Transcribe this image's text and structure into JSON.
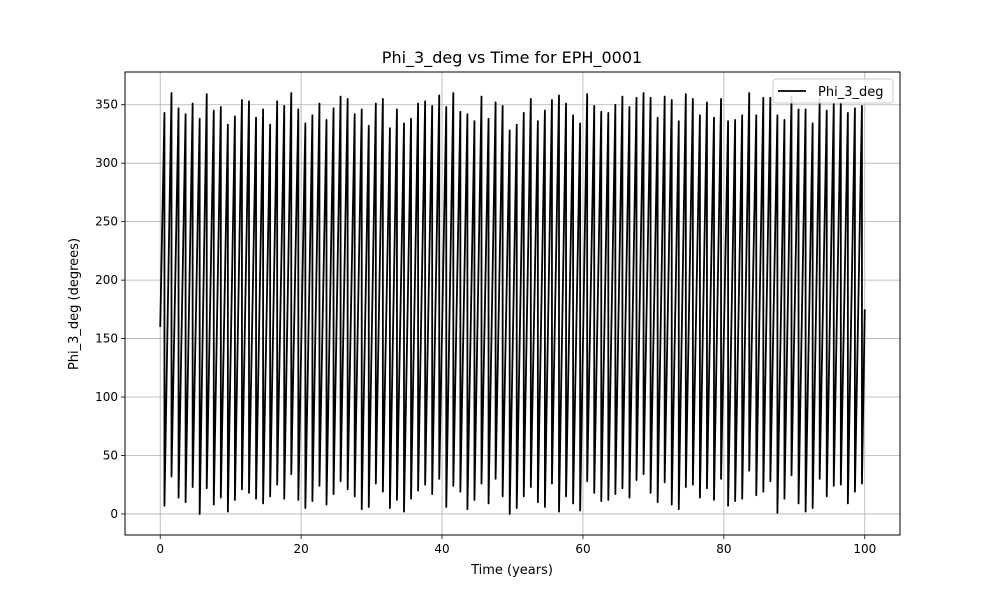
{
  "chart_data": {
    "type": "line",
    "title": "Phi_3_deg vs Time for EPH_0001",
    "xlabel": "Time (years)",
    "ylabel": "Phi_3_deg (degrees)",
    "xlim": [
      -5,
      105
    ],
    "ylim": [
      -18,
      378
    ],
    "xticks": [
      0,
      20,
      40,
      60,
      80,
      100
    ],
    "yticks": [
      0,
      50,
      100,
      150,
      200,
      250,
      300,
      350
    ],
    "xtick_labels": [
      "0",
      "20",
      "40",
      "60",
      "80",
      "100"
    ],
    "ytick_labels": [
      "0",
      "50",
      "100",
      "150",
      "200",
      "250",
      "300",
      "350"
    ],
    "grid": true,
    "legend_position": "top-right",
    "line_color": "#000000",
    "series": [
      {
        "name": "Phi_3_deg",
        "x": [
          0,
          0.6,
          0.6,
          1.6,
          1.6,
          2.6,
          2.6,
          3.6,
          3.6,
          4.6,
          4.6,
          5.6,
          5.6,
          6.6,
          6.6,
          7.6,
          7.6,
          8.6,
          8.6,
          9.6,
          9.6,
          10.6,
          10.6,
          11.6,
          11.6,
          12.6,
          12.6,
          13.6,
          13.6,
          14.6,
          14.6,
          15.6,
          15.6,
          16.6,
          16.6,
          17.6,
          17.6,
          18.6,
          18.6,
          19.6,
          19.6,
          20.6,
          20.6,
          21.6,
          21.6,
          22.6,
          22.6,
          23.6,
          23.6,
          24.6,
          24.6,
          25.6,
          25.6,
          26.6,
          26.6,
          27.6,
          27.6,
          28.6,
          28.6,
          29.6,
          29.6,
          30.6,
          30.6,
          31.6,
          31.6,
          32.6,
          32.6,
          33.6,
          33.6,
          34.6,
          34.6,
          35.6,
          35.6,
          36.6,
          36.6,
          37.6,
          37.6,
          38.6,
          38.6,
          39.6,
          39.6,
          40.6,
          40.6,
          41.6,
          41.6,
          42.6,
          42.6,
          43.6,
          43.6,
          44.6,
          44.6,
          45.6,
          45.6,
          46.6,
          46.6,
          47.6,
          47.6,
          48.6,
          48.6,
          49.6,
          49.6,
          50.6,
          50.6,
          51.6,
          51.6,
          52.6,
          52.6,
          53.6,
          53.6,
          54.6,
          54.6,
          55.6,
          55.6,
          56.6,
          56.6,
          57.6,
          57.6,
          58.6,
          58.6,
          59.6,
          59.6,
          60.6,
          60.6,
          61.6,
          61.6,
          62.6,
          62.6,
          63.6,
          63.6,
          64.6,
          64.6,
          65.6,
          65.6,
          66.6,
          66.6,
          67.6,
          67.6,
          68.6,
          68.6,
          69.6,
          69.6,
          70.6,
          70.6,
          71.6,
          71.6,
          72.6,
          72.6,
          73.6,
          73.6,
          74.6,
          74.6,
          75.6,
          75.6,
          76.6,
          76.6,
          77.6,
          77.6,
          78.6,
          78.6,
          79.6,
          79.6,
          80.6,
          80.6,
          81.6,
          81.6,
          82.6,
          82.6,
          83.6,
          83.6,
          84.6,
          84.6,
          85.6,
          85.6,
          86.6,
          86.6,
          87.6,
          87.6,
          88.6,
          88.6,
          89.6,
          89.6,
          90.6,
          90.6,
          91.6,
          91.6,
          92.6,
          92.6,
          93.6,
          93.6,
          94.6,
          94.6,
          95.6,
          95.6,
          96.6,
          96.6,
          97.6,
          97.6,
          98.6,
          98.6,
          99.6,
          99.6,
          100
        ],
        "y": [
          160,
          343,
          7,
          360,
          32,
          347,
          14,
          342,
          10,
          351,
          23,
          338,
          0,
          359,
          22,
          345,
          8,
          348,
          14,
          333,
          2,
          340,
          12,
          354,
          21,
          353,
          18,
          339,
          13,
          346,
          9,
          333,
          15,
          353,
          25,
          349,
          13,
          360,
          34,
          346,
          12,
          334,
          5,
          341,
          11,
          351,
          24,
          337,
          8,
          347,
          17,
          357,
          28,
          355,
          21,
          342,
          15,
          346,
          4,
          332,
          6,
          351,
          26,
          355,
          19,
          330,
          5,
          346,
          12,
          334,
          2,
          338,
          13,
          351,
          20,
          353,
          25,
          349,
          17,
          358,
          30,
          348,
          6,
          360,
          24,
          344,
          19,
          342,
          4,
          336,
          12,
          357,
          26,
          338,
          9,
          352,
          30,
          349,
          15,
          328,
          0,
          333,
          5,
          343,
          15,
          355,
          23,
          336,
          10,
          345,
          6,
          354,
          26,
          358,
          2,
          351,
          15,
          341,
          9,
          334,
          3,
          359,
          28,
          349,
          18,
          344,
          11,
          343,
          12,
          350,
          17,
          357,
          22,
          348,
          14,
          356,
          29,
          360,
          34,
          356,
          18,
          339,
          10,
          357,
          27,
          354,
          8,
          336,
          4,
          359,
          23,
          355,
          25,
          341,
          14,
          352,
          22,
          339,
          12,
          355,
          30,
          336,
          7,
          337,
          11,
          341,
          13,
          360,
          37,
          341,
          16,
          356,
          19,
          356,
          28,
          341,
          1,
          337,
          13,
          357,
          33,
          346,
          9,
          346,
          2,
          334,
          5,
          355,
          30,
          345,
          15,
          351,
          24,
          352,
          25,
          343,
          9,
          347,
          19,
          349,
          26,
          175
        ]
      }
    ]
  }
}
